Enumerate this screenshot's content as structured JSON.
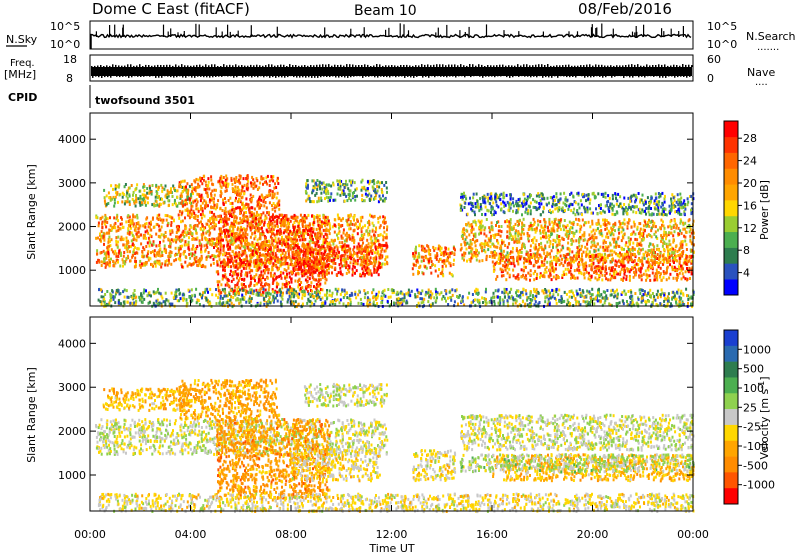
{
  "header": {
    "station": "Dome C East (fitACF)",
    "beam": "Beam 10",
    "date": "08/Feb/2016"
  },
  "panels": {
    "nsky": {
      "label": "N.Sky",
      "ticks_left": [
        "10^5",
        "10^0"
      ],
      "ticks_right": [
        "10^5",
        "10^0"
      ],
      "right_label": "N.Search",
      "right_legend": "......."
    },
    "freq": {
      "label_line1": "Freq.",
      "label_line2": "[MHz]",
      "ticks_left": [
        "18",
        "8"
      ],
      "ticks_right": [
        "60",
        "0"
      ],
      "right_label": "Nave",
      "right_legend": "...."
    },
    "cpid": {
      "label": "CPID",
      "value": "twofsound 3501"
    }
  },
  "axes": {
    "ylabel": "Slant Range [km]",
    "xlabel": "Time UT",
    "xticks": [
      "00:00",
      "04:00",
      "08:00",
      "12:00",
      "16:00",
      "20:00",
      "00:00"
    ],
    "yticks": [
      "1000",
      "2000",
      "3000",
      "4000"
    ]
  },
  "colorbars": {
    "power": {
      "label": "Power [dB]",
      "ticks": [
        "4",
        "8",
        "12",
        "16",
        "20",
        "24",
        "28"
      ],
      "colors": [
        "#0000ff",
        "#2a52be",
        "#2e7d4f",
        "#4caf50",
        "#9acd32",
        "#ffd700",
        "#ffa500",
        "#ff8c00",
        "#ff6600",
        "#ff3300",
        "#ff0000"
      ]
    },
    "velocity": {
      "label": "Velocity [m s-1]",
      "label_main": "Velocity [m s",
      "label_sup": "-1",
      "label_end": "]",
      "ticks": [
        "1000",
        "500",
        "100",
        "25",
        "-25",
        "-100",
        "-500",
        "-1000"
      ],
      "colors": [
        "#1a3fd0",
        "#2a6ab0",
        "#2e7d4f",
        "#4caf50",
        "#8fd14f",
        "#c8c8c8",
        "#ffd700",
        "#ffa500",
        "#ff8c00",
        "#ff5500",
        "#ff0000"
      ]
    }
  },
  "chart_data": [
    {
      "type": "heatmap",
      "title": "Power",
      "xlabel": "Time UT",
      "ylabel": "Slant Range [km]",
      "xlim": [
        0,
        24
      ],
      "ylim": [
        180,
        4600
      ],
      "colorbar": "Power [dB]",
      "clim": [
        0,
        30
      ],
      "echo_regions": [
        {
          "t": [
            0.2,
            11.8
          ],
          "r": [
            1100,
            2300
          ],
          "value": 20
        },
        {
          "t": [
            0.5,
            4.0
          ],
          "r": [
            2500,
            3000
          ],
          "value": 14
        },
        {
          "t": [
            3.5,
            7.5
          ],
          "r": [
            2300,
            3200
          ],
          "value": 22
        },
        {
          "t": [
            5.0,
            9.5
          ],
          "r": [
            500,
            2300
          ],
          "value": 24
        },
        {
          "t": [
            8.0,
            11.5
          ],
          "r": [
            900,
            1600
          ],
          "value": 26
        },
        {
          "t": [
            8.5,
            11.8
          ],
          "r": [
            2600,
            3100
          ],
          "value": 10
        },
        {
          "t": [
            12.8,
            14.5
          ],
          "r": [
            900,
            1600
          ],
          "value": 20
        },
        {
          "t": [
            14.7,
            24.0
          ],
          "r": [
            1200,
            2200
          ],
          "value": 18
        },
        {
          "t": [
            16.0,
            24.0
          ],
          "r": [
            800,
            1400
          ],
          "value": 22
        },
        {
          "t": [
            14.7,
            24.0
          ],
          "r": [
            2300,
            2800
          ],
          "value": 8
        },
        {
          "t": [
            0.3,
            24.0
          ],
          "r": [
            200,
            600
          ],
          "value": 10
        }
      ]
    },
    {
      "type": "heatmap",
      "title": "Velocity",
      "xlabel": "Time UT",
      "ylabel": "Slant Range [km]",
      "xlim": [
        0,
        24
      ],
      "ylim": [
        180,
        4600
      ],
      "colorbar": "Velocity [m s-1]",
      "clim": [
        -1000,
        1000
      ],
      "echo_regions": [
        {
          "t": [
            0.2,
            11.8
          ],
          "r": [
            1500,
            2300
          ],
          "value": 0
        },
        {
          "t": [
            0.5,
            4.0
          ],
          "r": [
            2500,
            3000
          ],
          "value": -300
        },
        {
          "t": [
            3.5,
            7.5
          ],
          "r": [
            2300,
            3200
          ],
          "value": -400
        },
        {
          "t": [
            5.0,
            9.5
          ],
          "r": [
            500,
            2300
          ],
          "value": -450
        },
        {
          "t": [
            8.0,
            11.5
          ],
          "r": [
            900,
            1600
          ],
          "value": -120
        },
        {
          "t": [
            8.5,
            11.8
          ],
          "r": [
            2600,
            3100
          ],
          "value": 0
        },
        {
          "t": [
            12.8,
            14.5
          ],
          "r": [
            900,
            1600
          ],
          "value": -100
        },
        {
          "t": [
            14.7,
            24.0
          ],
          "r": [
            1600,
            2400
          ],
          "value": 0
        },
        {
          "t": [
            16.0,
            24.0
          ],
          "r": [
            900,
            1500
          ],
          "value": -300
        },
        {
          "t": [
            14.7,
            24.0
          ],
          "r": [
            1100,
            1500
          ],
          "value": 80
        },
        {
          "t": [
            0.3,
            24.0
          ],
          "r": [
            200,
            600
          ],
          "value": -90
        }
      ]
    }
  ]
}
